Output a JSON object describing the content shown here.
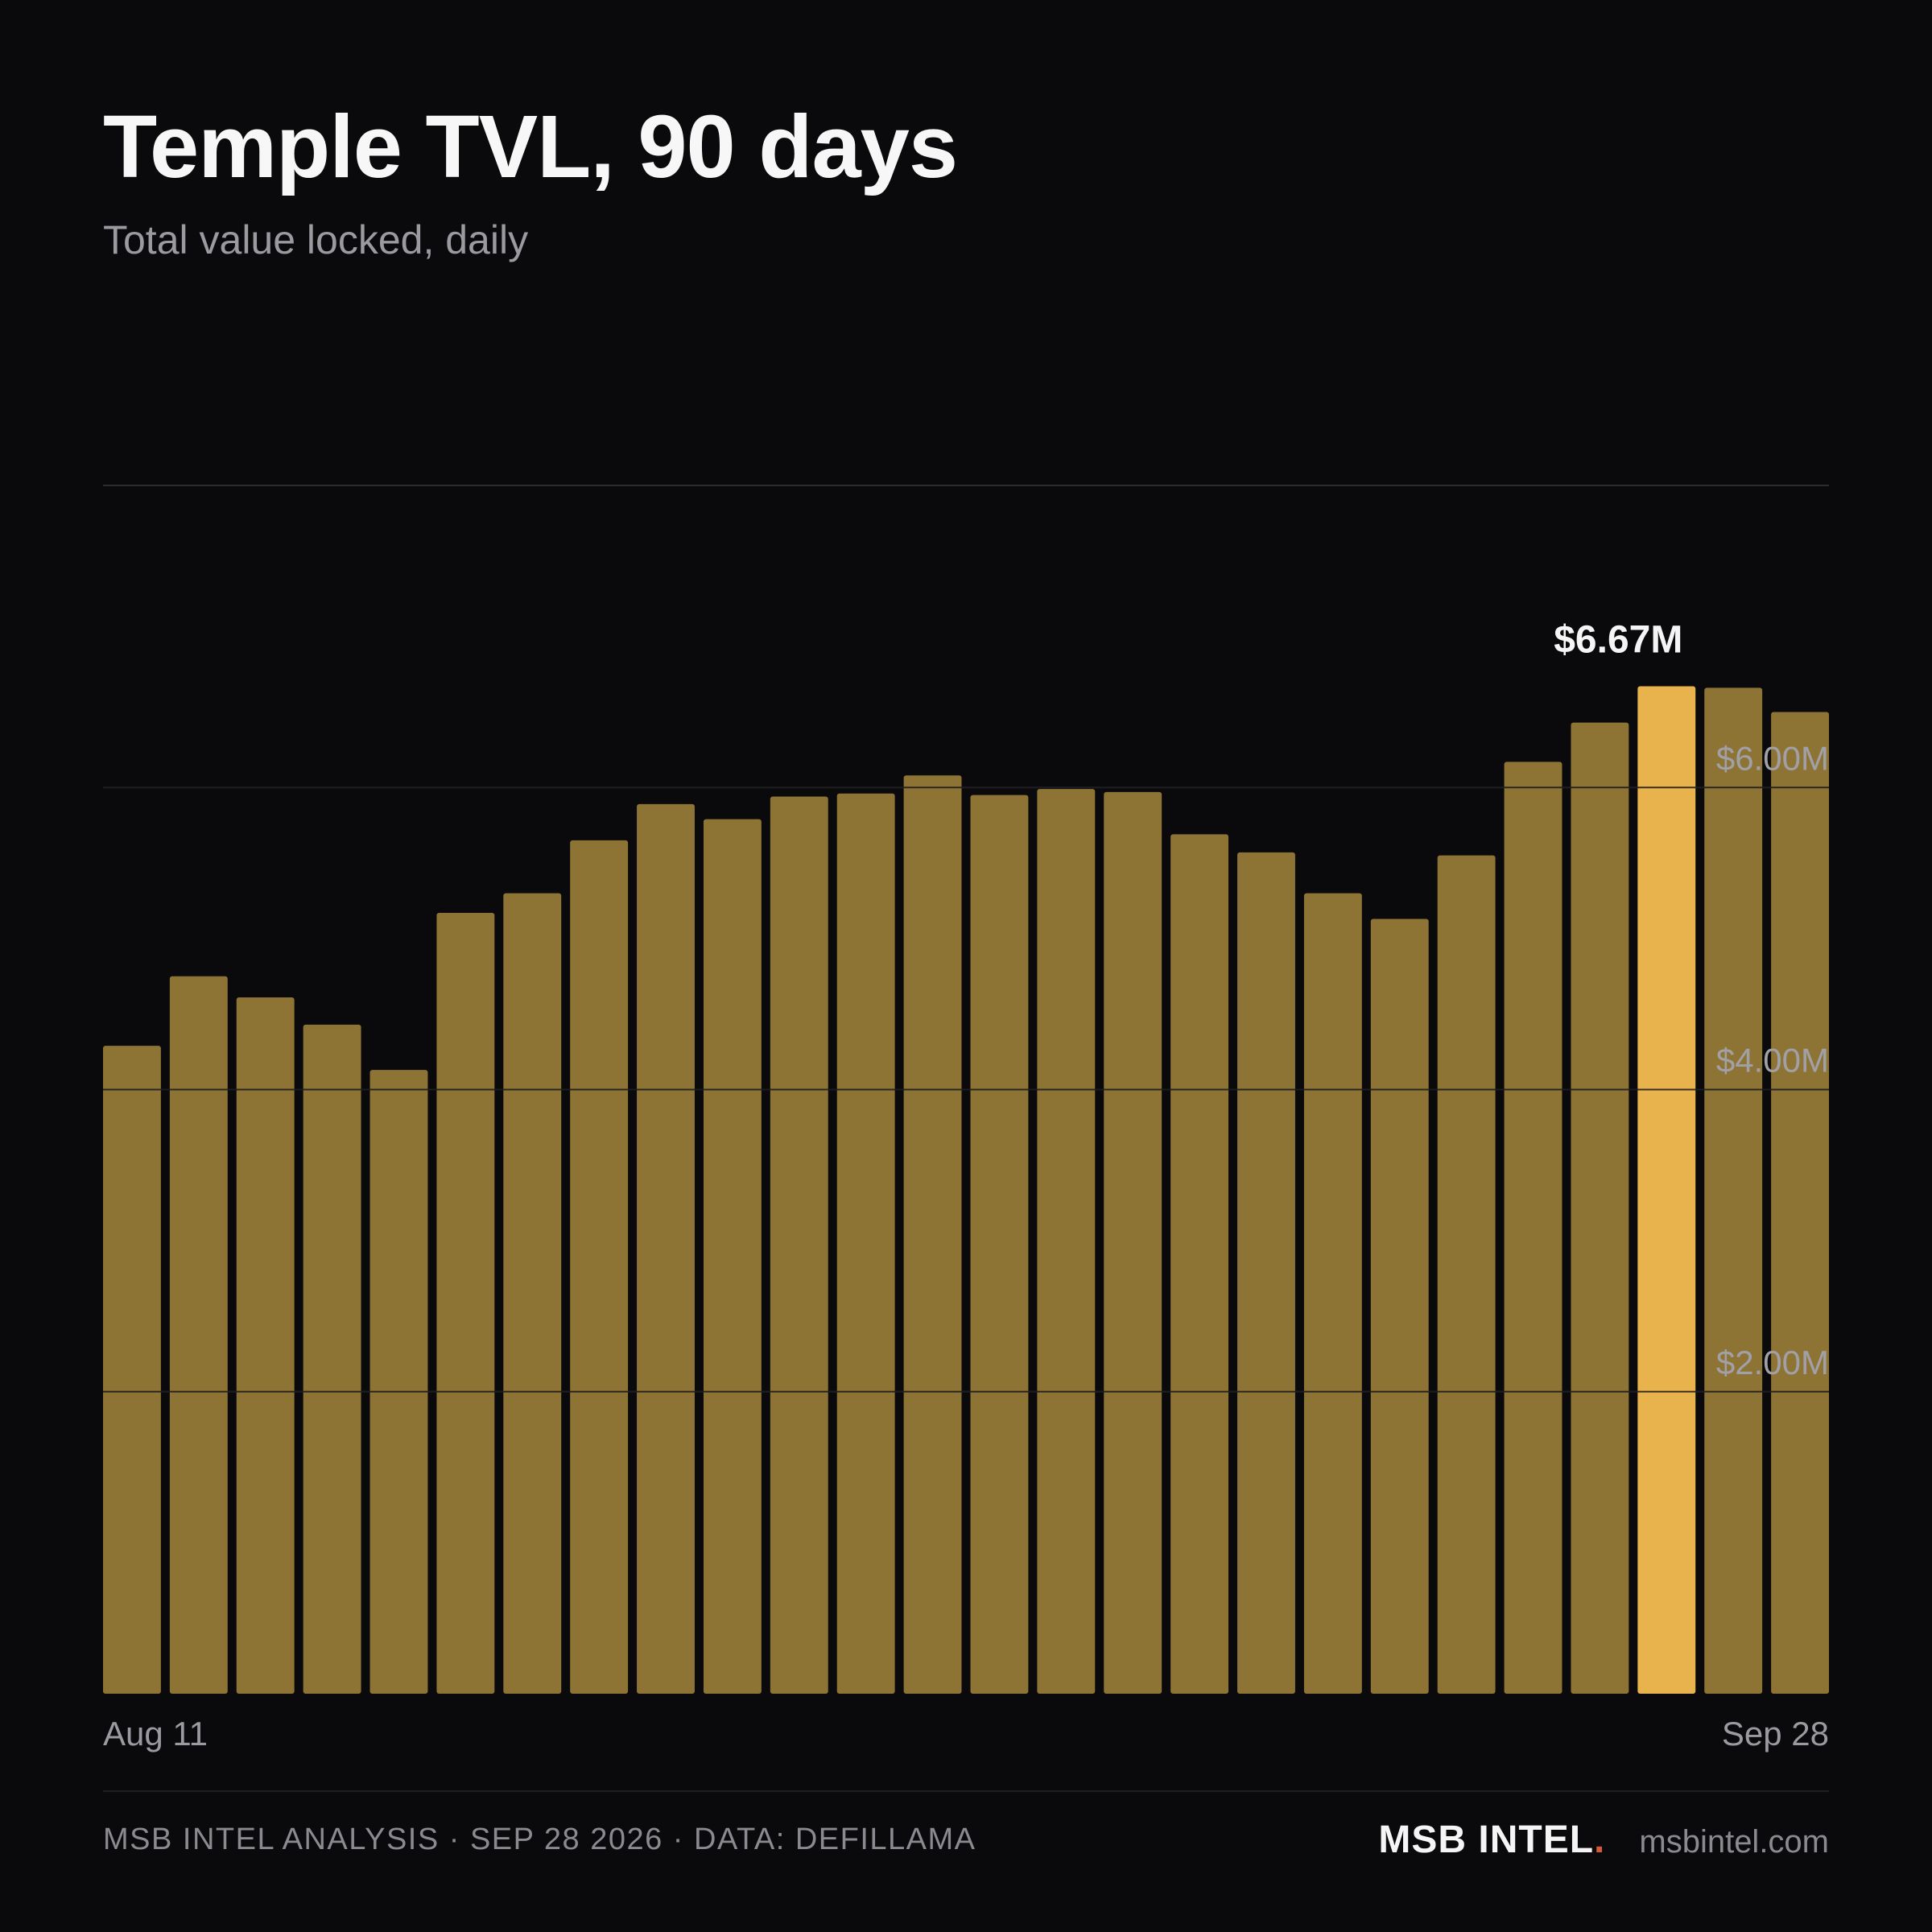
{
  "header": {
    "title": "Temple TVL, 90 days",
    "subtitle": "Total value locked, daily"
  },
  "chart_data": {
    "type": "bar",
    "title": "Temple TVL, 90 days",
    "subtitle": "Total value locked, daily",
    "values": [
      4.29,
      4.75,
      4.61,
      4.43,
      4.13,
      5.17,
      5.3,
      5.65,
      5.89,
      5.79,
      5.94,
      5.96,
      6.08,
      5.95,
      5.99,
      5.97,
      5.69,
      5.57,
      5.3,
      5.13,
      5.55,
      6.17,
      6.43,
      6.67,
      6.66,
      6.5
    ],
    "x_labels": [
      "Aug 11",
      "Sep 28"
    ],
    "y_ticks": [
      {
        "value": 2,
        "label": "$2.00M"
      },
      {
        "value": 4,
        "label": "$4.00M"
      },
      {
        "value": 6,
        "label": "$6.00M"
      },
      {
        "value": 8,
        "label": ""
      }
    ],
    "ylim": [
      0,
      8
    ],
    "unit": "$M",
    "highlight_index": 23,
    "highlight_label": "$6.67M",
    "grid": true,
    "colors": {
      "bar": "#8e7434",
      "highlight": "#e8b24c",
      "grid": "#2c2c31",
      "tick_text": "#a0a0a6",
      "label_text": "#f5f5f5",
      "axis_text": "#9a9aa0"
    }
  },
  "footer": {
    "left": "MSB INTEL ANALYSIS · SEP 28 2026 · DATA: DEFILLAMA",
    "brand": "MSB INTEL",
    "brand_dot": ".",
    "site": "msbintel.com"
  }
}
